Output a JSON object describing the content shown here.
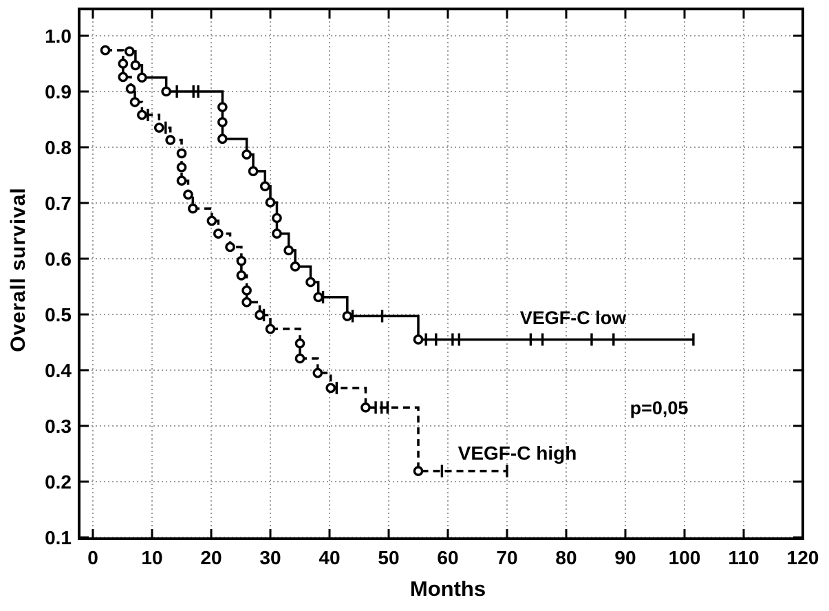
{
  "chart_data": {
    "type": "line",
    "chart_kind": "kaplan_meier_step",
    "title": "",
    "xlabel": "Months",
    "ylabel": "Overall survival",
    "xlim": [
      -2.3,
      120
    ],
    "ylim": [
      0.096,
      1.048
    ],
    "grid": true,
    "x_ticks": {
      "values": [
        0,
        10,
        20,
        30,
        40,
        50,
        60,
        70,
        80,
        90,
        100,
        110,
        120
      ],
      "labels": [
        "0",
        "10",
        "20",
        "30",
        "40",
        "50",
        "60",
        "70",
        "80",
        "90",
        "100",
        "110",
        "120"
      ]
    },
    "y_ticks": {
      "values": [
        0.1,
        0.2,
        0.3,
        0.4,
        0.5,
        0.6,
        0.7,
        0.8,
        0.9,
        1.0
      ],
      "labels": [
        "0.1",
        "0.2",
        "0.3",
        "0.4",
        "0.5",
        "0.6",
        "0.7",
        "0.8",
        "0.9",
        "1.0"
      ]
    },
    "annotations": [
      {
        "text": "VEGF-C low"
      },
      {
        "text": "p=0,05"
      },
      {
        "text": "VEGF-C high"
      }
    ],
    "series": [
      {
        "name": "VEGF-C low",
        "line_style": "solid",
        "color": "#000000",
        "steps": [
          [
            6.2,
            0.972
          ],
          [
            7.2,
            0.947
          ],
          [
            8.3,
            0.925
          ],
          [
            12.4,
            0.9
          ],
          [
            21.9,
            0.872
          ],
          [
            21.9,
            0.845
          ],
          [
            21.9,
            0.815
          ],
          [
            26.0,
            0.787
          ],
          [
            27.1,
            0.757
          ],
          [
            29.1,
            0.73
          ],
          [
            30.0,
            0.701
          ],
          [
            31.1,
            0.673
          ],
          [
            31.1,
            0.645
          ],
          [
            33.1,
            0.615
          ],
          [
            34.2,
            0.586
          ],
          [
            36.8,
            0.558
          ],
          [
            38.1,
            0.531
          ],
          [
            43.0,
            0.497
          ],
          [
            55.0,
            0.455
          ]
        ],
        "censor_marks": [
          [
            14.2,
            0.9
          ],
          [
            17.0,
            0.9
          ],
          [
            17.8,
            0.9
          ],
          [
            38.9,
            0.531
          ],
          [
            43.9,
            0.497
          ],
          [
            48.9,
            0.497
          ],
          [
            56.3,
            0.455
          ],
          [
            58.0,
            0.455
          ],
          [
            60.8,
            0.455
          ],
          [
            61.9,
            0.455
          ],
          [
            74.0,
            0.455
          ],
          [
            76.0,
            0.455
          ],
          [
            84.3,
            0.455
          ],
          [
            88.0,
            0.455
          ],
          [
            101.5,
            0.455
          ]
        ],
        "end_time": 101.5
      },
      {
        "name": "VEGF-C high",
        "line_style": "dashed",
        "color": "#000000",
        "steps": [
          [
            2.1,
            0.974
          ],
          [
            5.1,
            0.95
          ],
          [
            5.1,
            0.926
          ],
          [
            6.4,
            0.905
          ],
          [
            7.1,
            0.881
          ],
          [
            8.3,
            0.858
          ],
          [
            11.2,
            0.835
          ],
          [
            13.1,
            0.813
          ],
          [
            15.0,
            0.789
          ],
          [
            15.0,
            0.764
          ],
          [
            15.0,
            0.74
          ],
          [
            16.1,
            0.715
          ],
          [
            16.9,
            0.69
          ],
          [
            20.1,
            0.668
          ],
          [
            21.2,
            0.645
          ],
          [
            23.2,
            0.621
          ],
          [
            25.1,
            0.596
          ],
          [
            25.1,
            0.57
          ],
          [
            26.0,
            0.543
          ],
          [
            26.0,
            0.522
          ],
          [
            28.2,
            0.499
          ],
          [
            30.0,
            0.474
          ],
          [
            35.0,
            0.448
          ],
          [
            35.0,
            0.421
          ],
          [
            38.0,
            0.395
          ],
          [
            40.2,
            0.368
          ],
          [
            46.1,
            0.333
          ],
          [
            55.0,
            0.219
          ]
        ],
        "censor_marks": [
          [
            9.3,
            0.858
          ],
          [
            12.3,
            0.835
          ],
          [
            28.9,
            0.499
          ],
          [
            41.2,
            0.368
          ],
          [
            47.8,
            0.333
          ],
          [
            48.8,
            0.333
          ],
          [
            49.8,
            0.333
          ],
          [
            59.0,
            0.219
          ],
          [
            70.0,
            0.219
          ]
        ],
        "end_time": 70
      }
    ],
    "colors": {
      "curve": "#000000",
      "grid": "#9c9c9c",
      "frame": "#000000",
      "background": "#ffffff"
    }
  }
}
